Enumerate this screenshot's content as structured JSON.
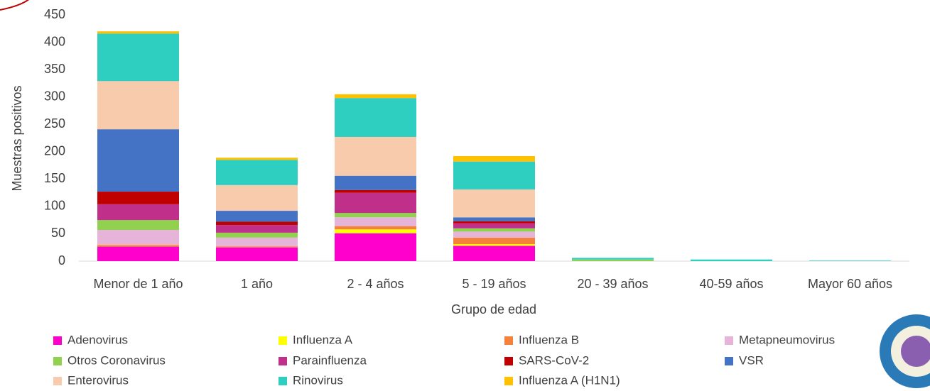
{
  "chart_data": {
    "type": "stacked_bar",
    "x_label": "Grupo de edad",
    "y_label": "Muestras positivos",
    "categories": [
      "Menor de 1 año",
      "1 año",
      "2 - 4 años",
      "5 - 19 años",
      "20 - 39 años",
      "40-59 años",
      "Mayor 60 años"
    ],
    "series": [
      {
        "name": "Adenovirus",
        "color": "#ff00cc",
        "values": [
          27,
          25,
          51,
          28,
          0,
          0,
          0
        ]
      },
      {
        "name": "Influenza A",
        "color": "#ffff00",
        "values": [
          1,
          0,
          7,
          3,
          0,
          0,
          0
        ]
      },
      {
        "name": "Influenza B",
        "color": "#f4823a",
        "values": [
          2,
          2,
          6,
          12,
          0,
          0,
          0
        ]
      },
      {
        "name": "Metapneumovirus",
        "color": "#e6b4d9",
        "values": [
          27,
          16,
          16,
          11,
          0,
          0,
          0
        ]
      },
      {
        "name": "Otros Coronavirus",
        "color": "#92d050",
        "values": [
          18,
          9,
          8,
          6,
          3,
          0,
          0
        ]
      },
      {
        "name": "Parainfluenza",
        "color": "#c0308a",
        "values": [
          29,
          14,
          37,
          9,
          0,
          0,
          0
        ]
      },
      {
        "name": "SARS-CoV-2",
        "color": "#c00000",
        "values": [
          23,
          6,
          5,
          4,
          0,
          0,
          0
        ]
      },
      {
        "name": "VSR",
        "color": "#4472c4",
        "values": [
          114,
          20,
          26,
          7,
          0,
          0,
          0
        ]
      },
      {
        "name": "Enterovirus",
        "color": "#f8cbad",
        "values": [
          88,
          47,
          71,
          51,
          0,
          0,
          0
        ]
      },
      {
        "name": "Rinovirus",
        "color": "#2ecfc0",
        "values": [
          87,
          46,
          71,
          51,
          3,
          3,
          1
        ]
      },
      {
        "name": "Influenza A (H1N1)",
        "color": "#ffc000",
        "values": [
          4,
          4,
          7,
          10,
          0,
          0,
          0
        ]
      }
    ],
    "ylim": [
      0,
      450
    ],
    "yticks": [
      0,
      50,
      100,
      150,
      200,
      250,
      300,
      350,
      400,
      450
    ],
    "grid": false,
    "legend_position": "bottom"
  }
}
